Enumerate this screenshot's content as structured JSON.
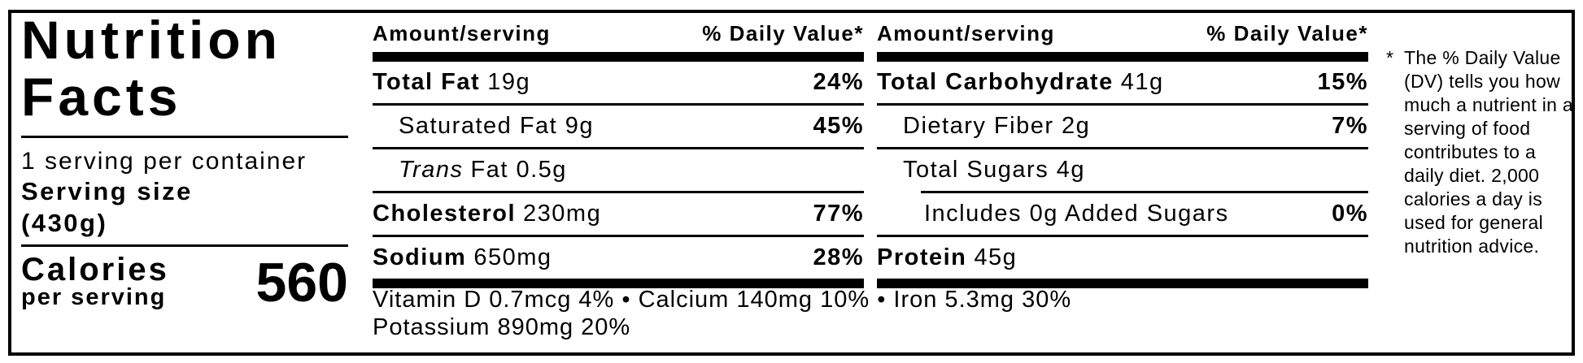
{
  "panel": {
    "title_line1": "Nutrition",
    "title_line2": "Facts",
    "servings_per_container": "1 serving per container",
    "serving_size_label": "Serving size",
    "serving_size_value": "(430g)",
    "calories_label": "Calories",
    "calories_sublabel": "per serving",
    "calories_value": "560"
  },
  "columns": [
    {
      "header_left": "Amount/serving",
      "header_right": "% Daily Value*",
      "rows": [
        {
          "bold": "Total Fat",
          "text": "19g",
          "dv": "24%"
        },
        {
          "text": "Saturated Fat 9g",
          "dv": "45%"
        },
        {
          "italic": "Trans",
          "text": "Fat 0.5g"
        },
        {
          "bold": "Cholesterol",
          "text": "230mg",
          "dv": "77%"
        },
        {
          "bold": "Sodium",
          "text": "650mg",
          "dv": "28%"
        }
      ]
    },
    {
      "header_left": "Amount/serving",
      "header_right": "% Daily Value*",
      "rows": [
        {
          "bold": "Total Carbohydrate",
          "text": "41g",
          "dv": "15%"
        },
        {
          "text": "Dietary Fiber 2g",
          "dv": "7%"
        },
        {
          "text": "Total Sugars 4g"
        },
        {
          "text": "Includes 0g Added Sugars",
          "dv": "0%"
        },
        {
          "bold": "Protein",
          "text": "45g"
        }
      ]
    }
  ],
  "micronutrients": {
    "line1": "Vitamin D 0.7mcg 4% • Calcium 140mg 10% • Iron 5.3mg 30%",
    "line2": "Potassium 890mg 20%"
  },
  "footnote": {
    "marker": "*",
    "text": "The % Daily Value (DV) tells you how much a nutrient in a serving of food contributes to a daily diet. 2,000 calories a day is used for general nutrition advice."
  },
  "colors": {
    "ink": "#000000",
    "background": "#ffffff"
  }
}
